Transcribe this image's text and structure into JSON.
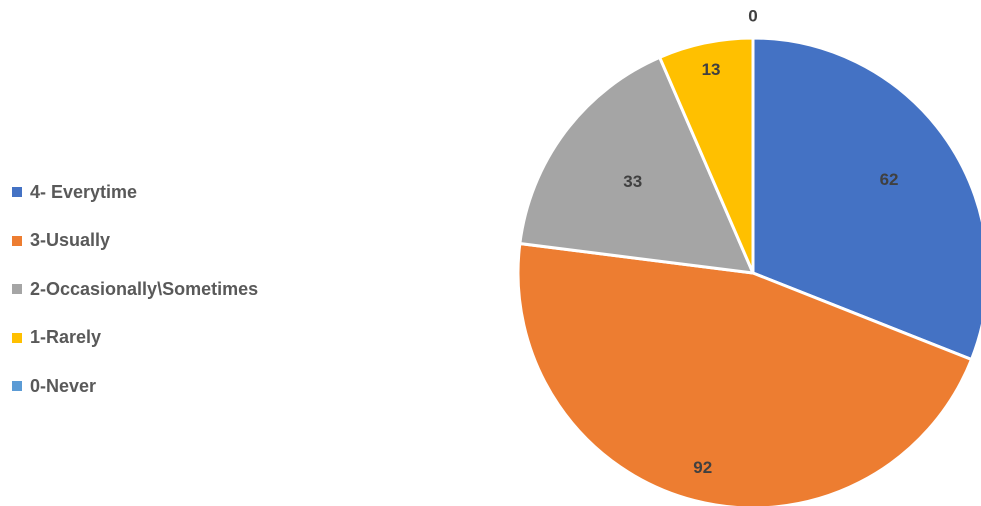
{
  "chart_data": {
    "type": "pie",
    "title": "",
    "categories": [
      "4- Everytime",
      "3-Usually",
      "2-Occasionally\\Sometimes",
      "1-Rarely",
      "0-Never"
    ],
    "values": [
      62,
      92,
      33,
      13,
      0
    ],
    "data_labels": [
      "62",
      "92",
      "33",
      "13",
      "0"
    ],
    "colors": [
      "#4472C4",
      "#ED7D31",
      "#A5A5A5",
      "#FFC000",
      "#5B9BD5"
    ],
    "legend_position": "left",
    "start_angle": "12 o'clock, clockwise"
  }
}
